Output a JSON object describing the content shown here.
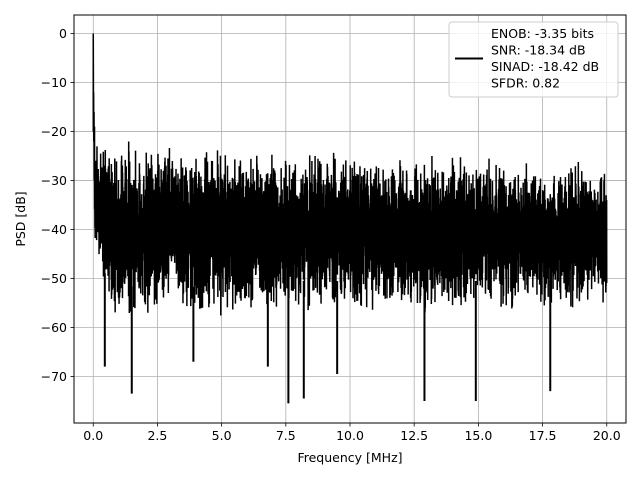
{
  "chart_data": {
    "type": "line",
    "title": "",
    "xlabel": "Frequency [MHz]",
    "ylabel": "PSD [dB]",
    "xlim": [
      -0.75,
      20.75
    ],
    "ylim": [
      -79.5,
      3.8
    ],
    "xticks": [
      0.0,
      2.5,
      5.0,
      7.5,
      10.0,
      12.5,
      15.0,
      17.5,
      20.0
    ],
    "xtick_labels": [
      "0.0",
      "2.5",
      "5.0",
      "7.5",
      "10.0",
      "12.5",
      "15.0",
      "17.5",
      "20.0"
    ],
    "yticks": [
      0,
      -10,
      -20,
      -30,
      -40,
      -50,
      -60,
      -70
    ],
    "ytick_labels": [
      "0",
      "−10",
      "−20",
      "−30",
      "−40",
      "−50",
      "−60",
      "−70"
    ],
    "grid": true,
    "legend_position": "top-right",
    "legend_lines": [
      "ENOB: -3.35 bits",
      "SNR: -18.34 dB",
      "SINAD: -18.42 dB",
      "SFDR: 0.82"
    ],
    "series": [
      {
        "color": "#000000",
        "x_range": [
          0.0,
          20.0
        ],
        "peak": {
          "x": 0.0,
          "y": 0.0
        },
        "upper_envelope": {
          "x": [
            0.05,
            0.5,
            1.0,
            2.5,
            5.0,
            7.5,
            10.0,
            12.5,
            15.0,
            17.5,
            20.0
          ],
          "y": [
            -17.5,
            -20.5,
            -21.0,
            -21.5,
            -22.0,
            -23.0,
            -23.5,
            -24.0,
            -24.5,
            -24.8,
            -25.0
          ]
        },
        "lower_envelope": {
          "x": [
            0.05,
            0.5,
            1.0,
            2.5,
            5.0,
            7.5,
            10.0,
            12.5,
            15.0,
            17.5,
            20.0
          ],
          "y": [
            -44.0,
            -54.0,
            -55.5,
            -56.0,
            -55.5,
            -54.5,
            -54.5,
            -54.5,
            -54.5,
            -54.5,
            -54.0
          ]
        },
        "notable_dips": [
          {
            "x": 0.45,
            "y": -68.0
          },
          {
            "x": 1.5,
            "y": -73.5
          },
          {
            "x": 3.9,
            "y": -67.0
          },
          {
            "x": 6.8,
            "y": -68.0
          },
          {
            "x": 7.6,
            "y": -75.5
          },
          {
            "x": 8.2,
            "y": -74.5
          },
          {
            "x": 9.5,
            "y": -69.5
          },
          {
            "x": 12.9,
            "y": -75.0
          },
          {
            "x": 14.9,
            "y": -75.0
          },
          {
            "x": 17.8,
            "y": -73.0
          }
        ]
      }
    ]
  }
}
